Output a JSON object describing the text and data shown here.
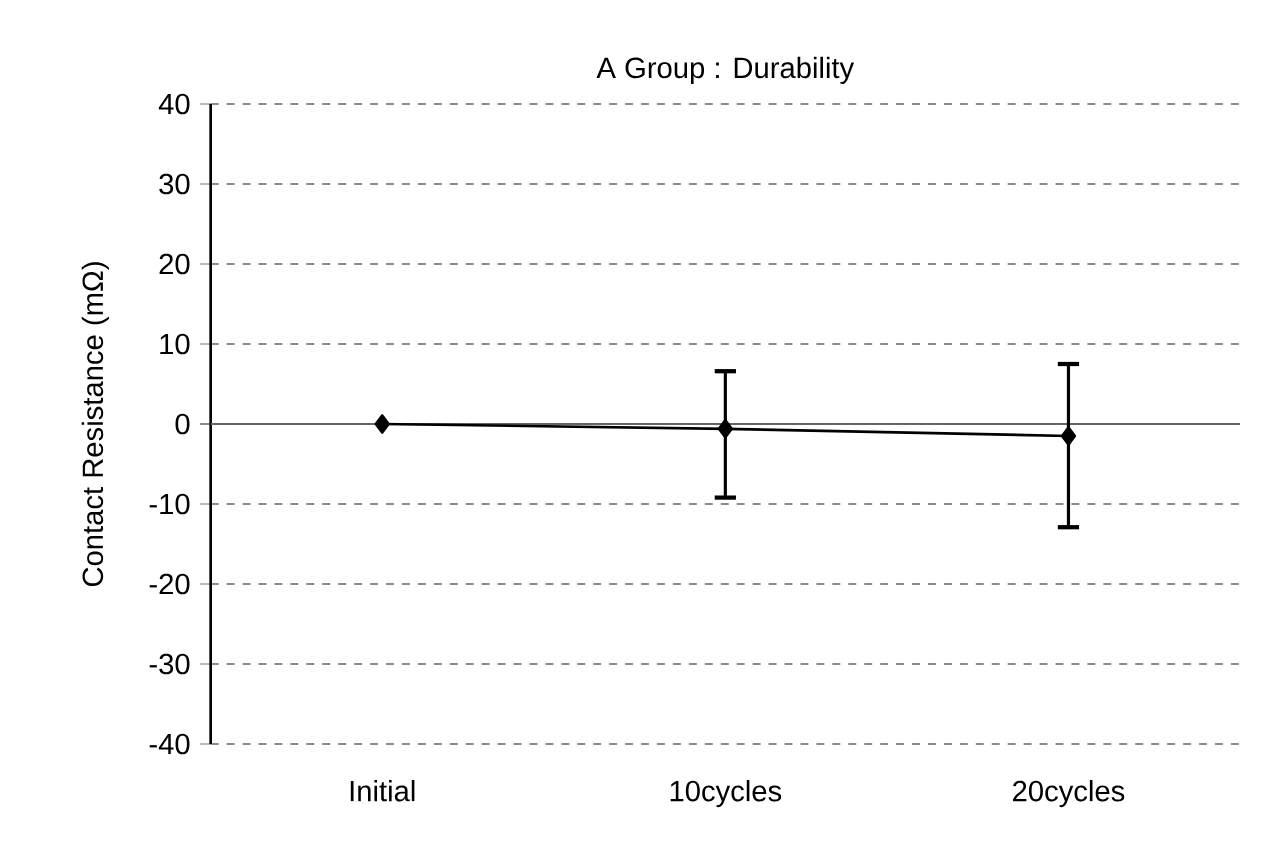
{
  "chart_data": {
    "type": "line",
    "title": "A Group : Durability",
    "ylabel": "Contact Resistance (mΩ)",
    "categories": [
      "Initial",
      "10cycles",
      "20cycles"
    ],
    "series": [
      {
        "color": "#000000",
        "values": [
          0,
          -0.6,
          -1.5
        ],
        "errors": [
          null,
          [
            -9.2,
            6.6
          ],
          [
            -12.9,
            7.5
          ]
        ]
      }
    ],
    "ylim": [
      -40,
      40
    ],
    "yticks": [
      -40,
      -30,
      -20,
      -10,
      0,
      10,
      20,
      30,
      40
    ],
    "grid": "y",
    "marker": "diamond",
    "line_style": "solid"
  }
}
